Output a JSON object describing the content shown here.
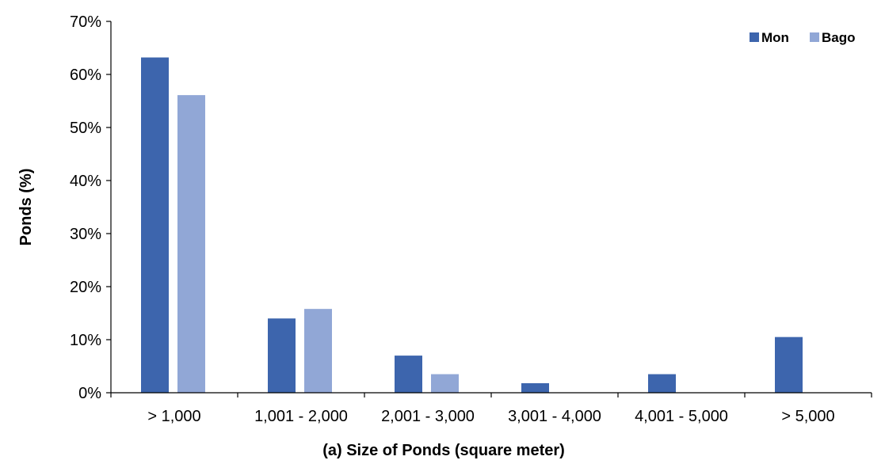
{
  "chart_data": {
    "type": "bar",
    "title": "",
    "xlabel": "(a) Size of Ponds (square meter)",
    "ylabel": "Ponds (%)",
    "categories": [
      "> 1,000",
      "1,001 - 2,000",
      "2,001 - 3,000",
      "3,001 - 4,000",
      "4,001 - 5,000",
      "> 5,000"
    ],
    "series": [
      {
        "name": "Mon",
        "color": "#3d65ad",
        "values": [
          63.2,
          14.0,
          7.0,
          1.8,
          3.5,
          10.5
        ]
      },
      {
        "name": "Bago",
        "color": "#91a7d6",
        "values": [
          56.1,
          15.8,
          3.5,
          0,
          0,
          0
        ]
      }
    ],
    "ylim": [
      0,
      70
    ],
    "yticks": [
      "0%",
      "10%",
      "20%",
      "30%",
      "40%",
      "50%",
      "60%",
      "70%"
    ],
    "ytick_values": [
      0,
      10,
      20,
      30,
      40,
      50,
      60,
      70
    ],
    "grid": false,
    "legend_position": "top-right"
  }
}
